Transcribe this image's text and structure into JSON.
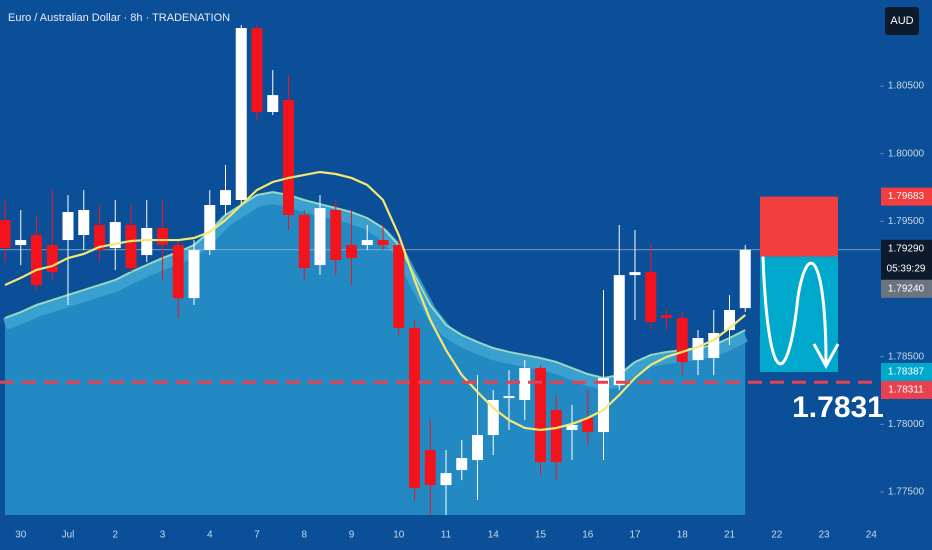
{
  "chart_data": {
    "type": "candlestick",
    "title": "Euro / Australian Dollar · 8h · TRADENATION",
    "currency": "AUD",
    "categories": [
      null,
      "30",
      null,
      null,
      "Jul",
      null,
      null,
      "2",
      null,
      null,
      "3",
      null,
      null,
      "4",
      null,
      null,
      "7",
      null,
      null,
      "8",
      null,
      null,
      "9",
      null,
      null,
      "10",
      null,
      null,
      "11",
      null,
      null,
      "14",
      null,
      null,
      "15",
      null,
      null,
      "16",
      null,
      null,
      "17",
      null,
      null,
      "18",
      null,
      null,
      "21",
      null,
      null,
      "22",
      null,
      null,
      "23",
      null,
      null,
      "24"
    ],
    "open": [
      1.7951,
      1.79325,
      1.79399,
      1.79325,
      1.79362,
      1.79399,
      1.79473,
      1.79303,
      1.79473,
      1.79251,
      1.79451,
      1.79325,
      1.78933,
      1.79288,
      1.79621,
      1.79658,
      1.80929,
      1.80308,
      1.80397,
      1.79547,
      1.79177,
      1.79584,
      1.79325,
      1.79325,
      1.79362,
      1.79325,
      1.78712,
      1.7781,
      1.77551,
      1.77662,
      1.77736,
      1.77921,
      1.78194,
      1.7818,
      1.78416,
      1.78106,
      1.77958,
      1.78047,
      1.77943,
      1.7829,
      1.79103,
      1.79125,
      1.78808,
      1.78786,
      1.78475,
      1.7849,
      1.78697,
      1.78859,
      null,
      null,
      null,
      null,
      null,
      null,
      null,
      null
    ],
    "high": [
      1.79658,
      1.79584,
      1.79547,
      1.79731,
      1.79694,
      1.79731,
      1.79621,
      1.79658,
      1.79621,
      1.79658,
      1.79658,
      1.79362,
      1.79362,
      1.79731,
      1.79916,
      1.80951,
      1.80951,
      1.80618,
      1.80581,
      1.79584,
      1.79694,
      1.79658,
      1.79584,
      1.79473,
      1.79473,
      1.79362,
      1.78771,
      1.78032,
      1.7781,
      1.77884,
      1.78364,
      1.78253,
      1.78401,
      1.78475,
      1.78438,
      1.78217,
      1.78143,
      1.78253,
      1.78992,
      1.79473,
      1.79436,
      1.79325,
      1.78845,
      1.7883,
      1.78697,
      1.78845,
      1.78955,
      1.79325,
      null,
      null,
      null,
      null,
      null,
      null,
      null,
      null
    ],
    "low": [
      1.79199,
      1.79177,
      1.78992,
      1.79066,
      1.78882,
      1.79288,
      1.79199,
      1.7914,
      1.79125,
      1.79199,
      1.79066,
      1.78786,
      1.78882,
      1.79251,
      1.79547,
      1.79621,
      1.80249,
      1.80286,
      1.79436,
      1.79066,
      1.79103,
      1.79103,
      1.79029,
      1.79288,
      1.79288,
      1.7866,
      1.77441,
      1.7733,
      1.7733,
      1.77588,
      1.77441,
      1.77773,
      1.77958,
      1.78032,
      1.77625,
      1.77588,
      1.77736,
      1.77847,
      1.77736,
      1.78253,
      1.78771,
      1.78697,
      1.78697,
      1.78364,
      1.78364,
      1.78364,
      1.78586,
      1.7883,
      null,
      null,
      null,
      null,
      null,
      null,
      null,
      null
    ],
    "close": [
      1.79303,
      1.79362,
      1.79029,
      1.79125,
      1.79569,
      1.79584,
      1.79288,
      1.79495,
      1.79155,
      1.79451,
      1.79325,
      1.78933,
      1.79288,
      1.79621,
      1.79731,
      1.80929,
      1.80308,
      1.80433,
      1.79547,
      1.79155,
      1.79598,
      1.79214,
      1.79229,
      1.79362,
      1.79325,
      1.78712,
      1.77529,
      1.77551,
      1.7764,
      1.77751,
      1.77921,
      1.7818,
      1.78209,
      1.78416,
      1.77721,
      1.77721,
      1.77995,
      1.77943,
      1.78342,
      1.79103,
      1.79125,
      1.78756,
      1.78786,
      1.7846,
      1.78638,
      1.78675,
      1.78845,
      1.7929,
      null,
      null,
      null,
      null,
      null,
      null,
      null,
      null
    ],
    "up_color": "#ffffff",
    "down_color": "#f2131c",
    "ma_fast": {
      "color": "#f6e774",
      "values": [
        1.7903,
        1.79082,
        1.79141,
        1.7917,
        1.79229,
        1.79259,
        1.79311,
        1.79333,
        1.79355,
        1.79362,
        1.79362,
        1.79362,
        1.79377,
        1.79422,
        1.7951,
        1.79621,
        1.79732,
        1.79791,
        1.79821,
        1.79843,
        1.79865,
        1.7985,
        1.79821,
        1.79769,
        1.79658,
        1.79399,
        1.79067,
        1.78771,
        1.78549,
        1.78365,
        1.78239,
        1.78121,
        1.78032,
        1.77973,
        1.77958,
        1.77973,
        1.78003,
        1.78047,
        1.78106,
        1.78217,
        1.78343,
        1.78439,
        1.78498,
        1.78535,
        1.78572,
        1.78623,
        1.78712,
        1.78808,
        null,
        null,
        null,
        null,
        null,
        null,
        null,
        null
      ]
    },
    "ma_slow": {
      "color": "#a8e6bd",
      "values": [
        1.78786,
        1.7883,
        1.78882,
        1.78919,
        1.78956,
        1.78993,
        1.7903,
        1.79067,
        1.79126,
        1.79178,
        1.79229,
        1.79274,
        1.79325,
        1.79422,
        1.79547,
        1.79621,
        1.79695,
        1.79717,
        1.79695,
        1.79658,
        1.79628,
        1.79599,
        1.79569,
        1.79525,
        1.79451,
        1.79325,
        1.79104,
        1.78882,
        1.78734,
        1.7866,
        1.78609,
        1.78564,
        1.78535,
        1.78513,
        1.7849,
        1.78461,
        1.78416,
        1.78372,
        1.78343,
        1.78365,
        1.78461,
        1.78513,
        1.78535,
        1.78549,
        1.78564,
        1.78586,
        1.78638,
        1.78697,
        null,
        null,
        null,
        null,
        null,
        null,
        null,
        null
      ]
    },
    "ylim": [
      1.77293,
      1.81136
    ],
    "yticks": [
      {
        "value": 1.775,
        "label": "1.77500"
      },
      {
        "value": 1.78,
        "label": "1.78000"
      },
      {
        "value": 1.785,
        "label": "1.78500"
      },
      {
        "value": 1.795,
        "label": "1.79500"
      },
      {
        "value": 1.8,
        "label": "1.80000"
      },
      {
        "value": 1.805,
        "label": "1.80500"
      }
    ],
    "current_price": {
      "value": 1.7929,
      "label": "1.79290",
      "countdown": "05:39:29"
    },
    "position": {
      "stop": {
        "value": 1.79683,
        "label": "1.79683",
        "color": "#f23e3e"
      },
      "entry": {
        "value": 1.7924,
        "label": "1.79240",
        "color": "#6b7480"
      },
      "target": {
        "value": 1.78387,
        "label": "1.78387",
        "color": "#00a8cc"
      }
    },
    "level": {
      "value": 1.78311,
      "label": "1.78311",
      "color": "#e8414f",
      "annotation": "1.7831"
    }
  }
}
